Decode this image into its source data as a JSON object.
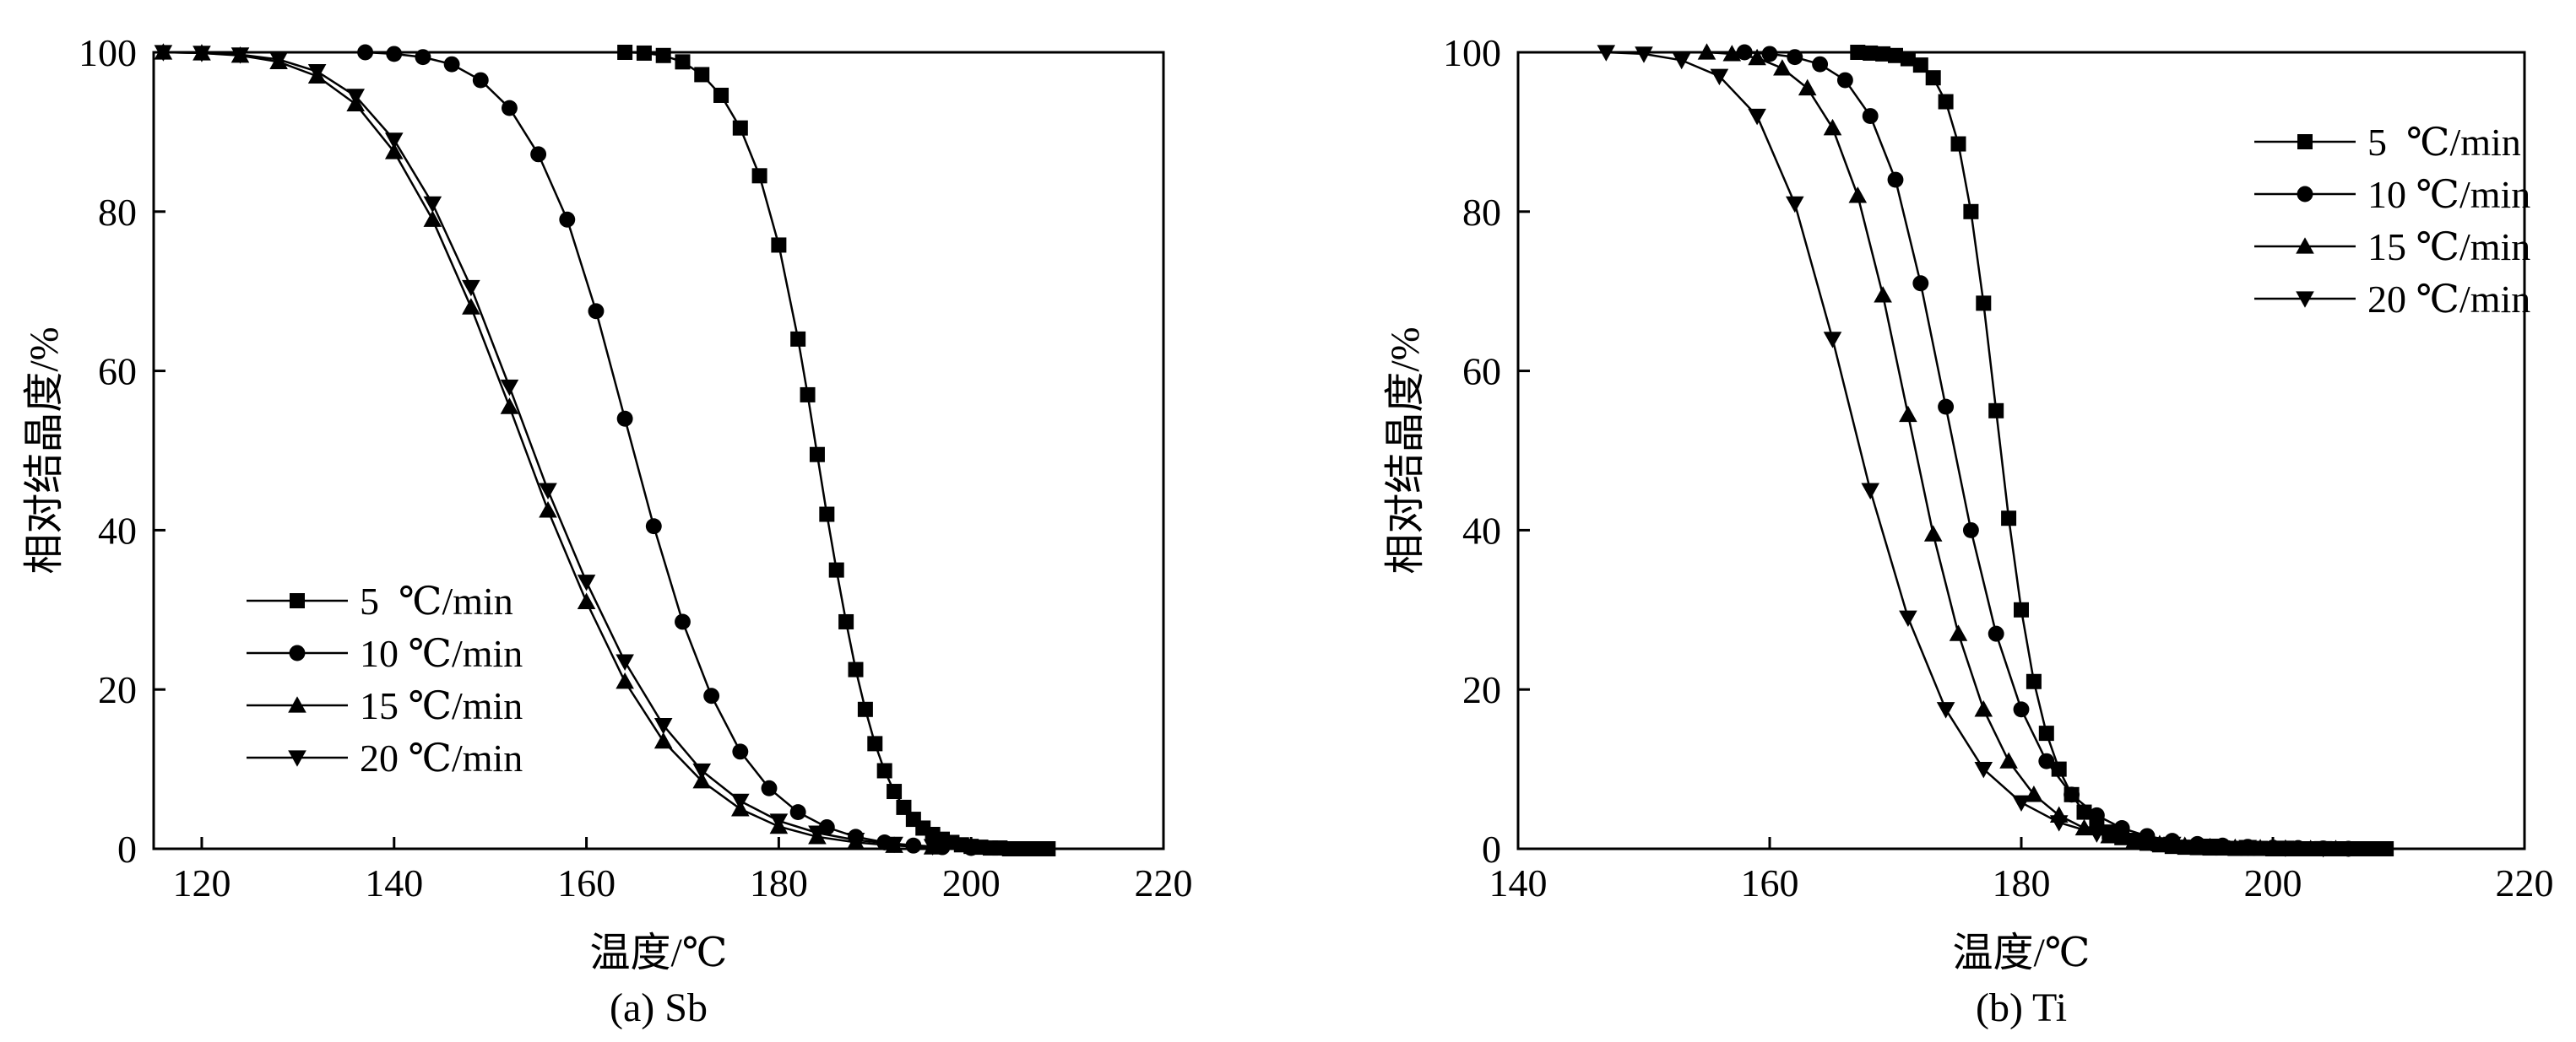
{
  "figure": {
    "panels": [
      {
        "caption": "(a) Sb"
      },
      {
        "caption": "(b) Ti"
      }
    ]
  },
  "chart_data": [
    {
      "type": "line",
      "caption": "(a) Sb",
      "xlabel": "温度/℃",
      "ylabel": "相对结晶度/%",
      "xlim": [
        115,
        220
      ],
      "ylim": [
        0,
        100
      ],
      "xticks": [
        120,
        140,
        160,
        180,
        200,
        220
      ],
      "yticks": [
        0,
        20,
        40,
        60,
        80,
        100
      ],
      "grid": false,
      "legend_position": "lower-left",
      "series": [
        {
          "name": "5  ℃/min",
          "marker": "square",
          "x": [
            164,
            166,
            168,
            170,
            172,
            174,
            176,
            178,
            180,
            182,
            183,
            184,
            185,
            186,
            187,
            188,
            189,
            190,
            191,
            192,
            193,
            194,
            195,
            196,
            197,
            198,
            199,
            200,
            201,
            202,
            203,
            204,
            205,
            206,
            207,
            208
          ],
          "y": [
            100,
            99.9,
            99.6,
            98.8,
            97.2,
            94.6,
            90.5,
            84.5,
            75.8,
            64,
            57,
            49.5,
            42,
            35,
            28.5,
            22.5,
            17.5,
            13.2,
            9.8,
            7.2,
            5.2,
            3.7,
            2.6,
            1.8,
            1.2,
            0.8,
            0.5,
            0.3,
            0.2,
            0.1,
            0.1,
            0,
            0,
            0,
            0,
            0
          ]
        },
        {
          "name": "10 ℃/min",
          "marker": "circle",
          "x": [
            137,
            140,
            143,
            146,
            149,
            152,
            155,
            158,
            161,
            164,
            167,
            170,
            173,
            176,
            179,
            182,
            185,
            188,
            191,
            194,
            197,
            200
          ],
          "y": [
            100,
            99.8,
            99.4,
            98.5,
            96.5,
            93,
            87.2,
            79,
            67.5,
            54,
            40.5,
            28.5,
            19.2,
            12.2,
            7.6,
            4.6,
            2.7,
            1.5,
            0.8,
            0.4,
            0.2,
            0.1
          ]
        },
        {
          "name": "15 ℃/min",
          "marker": "triangle-up",
          "x": [
            116,
            120,
            124,
            128,
            132,
            136,
            140,
            144,
            148,
            152,
            156,
            160,
            164,
            168,
            172,
            176,
            180,
            184,
            188,
            192,
            196
          ],
          "y": [
            100,
            99.9,
            99.6,
            98.8,
            97,
            93.5,
            87.5,
            79,
            68,
            55.5,
            42.5,
            31,
            21,
            13.5,
            8.5,
            5,
            2.8,
            1.5,
            0.8,
            0.4,
            0.2
          ]
        },
        {
          "name": "20 ℃/min",
          "marker": "triangle-down",
          "x": [
            116,
            120,
            124,
            128,
            132,
            136,
            140,
            144,
            148,
            152,
            156,
            160,
            164,
            168,
            172,
            176,
            180,
            184,
            188,
            192,
            196
          ],
          "y": [
            100,
            99.9,
            99.7,
            99.1,
            97.6,
            94.5,
            89,
            81,
            70.5,
            58,
            45,
            33.5,
            23.5,
            15.5,
            9.8,
            6,
            3.5,
            2,
            1.1,
            0.6,
            0.3
          ]
        }
      ]
    },
    {
      "type": "line",
      "caption": "(b) Ti",
      "xlabel": "温度/℃",
      "ylabel": "相对结晶度/%",
      "xlim": [
        140,
        220
      ],
      "ylim": [
        0,
        100
      ],
      "xticks": [
        140,
        160,
        180,
        200,
        220
      ],
      "yticks": [
        0,
        20,
        40,
        60,
        80,
        100
      ],
      "grid": false,
      "legend_position": "top-right",
      "series": [
        {
          "name": "5  ℃/min",
          "marker": "square",
          "x": [
            167,
            168,
            169,
            170,
            171,
            172,
            173,
            174,
            175,
            176,
            177,
            178,
            179,
            180,
            181,
            182,
            183,
            184,
            185,
            186,
            187,
            188,
            189,
            190,
            191,
            192,
            193,
            194,
            195,
            196,
            197,
            198,
            199,
            200,
            201,
            202,
            203,
            204,
            205,
            206,
            207,
            208,
            209
          ],
          "y": [
            100,
            99.9,
            99.8,
            99.6,
            99.2,
            98.4,
            96.8,
            93.8,
            88.5,
            80,
            68.5,
            55,
            41.5,
            30,
            21,
            14.5,
            10,
            6.8,
            4.6,
            3.1,
            2.1,
            1.4,
            1,
            0.7,
            0.5,
            0.3,
            0.2,
            0.15,
            0.1,
            0.1,
            0.05,
            0.05,
            0.05,
            0,
            0,
            0,
            0,
            0,
            0,
            0,
            0,
            0,
            0
          ]
        },
        {
          "name": "10 ℃/min",
          "marker": "circle",
          "x": [
            158,
            160,
            162,
            164,
            166,
            168,
            170,
            172,
            174,
            176,
            178,
            180,
            182,
            184,
            186,
            188,
            190,
            192,
            194,
            196,
            198,
            200,
            202,
            204,
            206
          ],
          "y": [
            100,
            99.8,
            99.4,
            98.5,
            96.5,
            92,
            84,
            71,
            55.5,
            40,
            27,
            17.5,
            11,
            6.8,
            4.2,
            2.6,
            1.6,
            1,
            0.6,
            0.4,
            0.25,
            0.15,
            0.1,
            0.05,
            0
          ]
        },
        {
          "name": "15 ℃/min",
          "marker": "triangle-up",
          "x": [
            155,
            157,
            159,
            161,
            163,
            165,
            167,
            169,
            171,
            173,
            175,
            177,
            179,
            181,
            183,
            185,
            187,
            189,
            191,
            193,
            195,
            197,
            199,
            201,
            203,
            205
          ],
          "y": [
            100,
            99.8,
            99.3,
            98,
            95.5,
            90.5,
            82,
            69.5,
            54.5,
            39.5,
            27,
            17.5,
            11,
            6.8,
            4.2,
            2.6,
            1.6,
            1,
            0.6,
            0.4,
            0.25,
            0.15,
            0.1,
            0.05,
            0,
            0
          ]
        },
        {
          "name": "20 ℃/min",
          "marker": "triangle-down",
          "x": [
            147,
            150,
            153,
            156,
            159,
            162,
            165,
            168,
            171,
            174,
            177,
            180,
            183,
            186,
            189,
            192,
            195,
            198,
            201,
            204
          ],
          "y": [
            100,
            99.8,
            99,
            97,
            92,
            81,
            64,
            45,
            29,
            17.5,
            10,
            5.8,
            3.3,
            1.9,
            1.1,
            0.6,
            0.35,
            0.2,
            0.1,
            0.05
          ]
        }
      ]
    }
  ]
}
